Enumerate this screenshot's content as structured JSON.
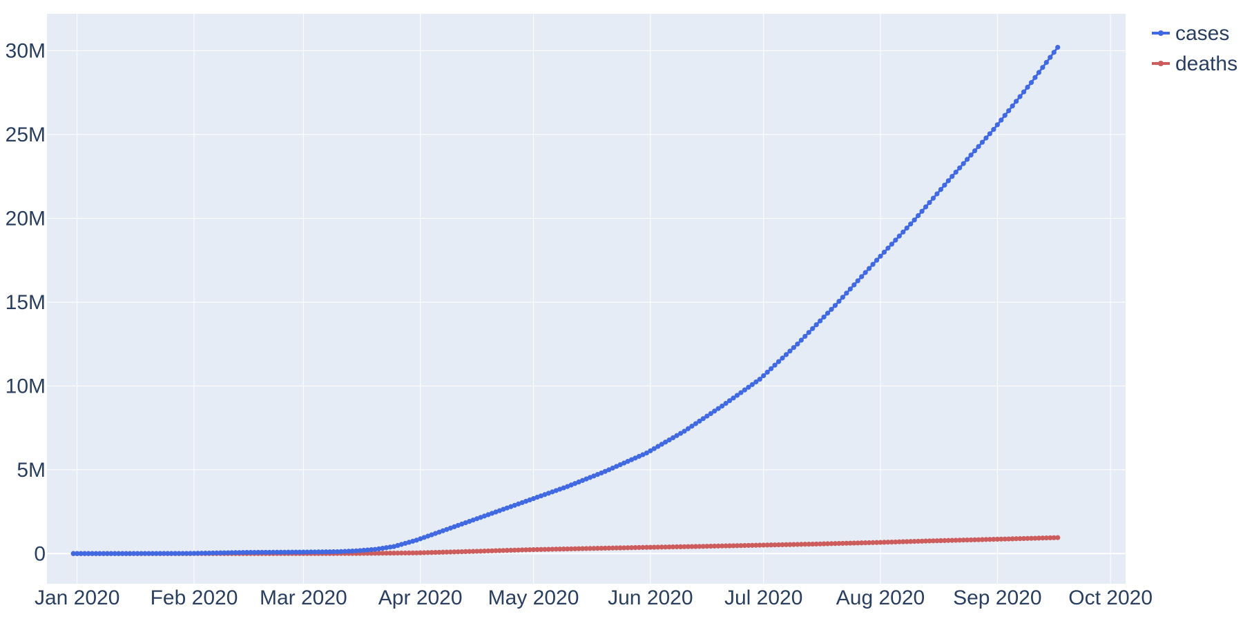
{
  "chart_data": {
    "type": "line",
    "title": "",
    "xlabel": "",
    "ylabel": "",
    "x_axis_type": "date",
    "xlim": [
      "2019-12-24",
      "2020-10-05"
    ],
    "ylim": [
      -1800000,
      32200000
    ],
    "x_ticks": [
      "2020-01-01",
      "2020-02-01",
      "2020-03-01",
      "2020-04-01",
      "2020-05-01",
      "2020-06-01",
      "2020-07-01",
      "2020-08-01",
      "2020-09-01",
      "2020-10-01"
    ],
    "x_tick_labels": [
      "Jan 2020",
      "Feb 2020",
      "Mar 2020",
      "Apr 2020",
      "May 2020",
      "Jun 2020",
      "Jul 2020",
      "Aug 2020",
      "Sep 2020",
      "Oct 2020"
    ],
    "y_ticks": [
      0,
      5000000,
      10000000,
      15000000,
      20000000,
      25000000,
      30000000
    ],
    "y_tick_labels": [
      "0",
      "5M",
      "10M",
      "15M",
      "20M",
      "25M",
      "30M"
    ],
    "grid": true,
    "background": "#e5ecf6",
    "legend_position": "top-right",
    "series": [
      {
        "name": "cases",
        "color": "#4169e1",
        "points": [
          [
            "2019-12-31",
            0
          ],
          [
            "2020-01-15",
            50
          ],
          [
            "2020-01-31",
            9800
          ],
          [
            "2020-02-15",
            69000
          ],
          [
            "2020-02-29",
            86000
          ],
          [
            "2020-03-10",
            110000
          ],
          [
            "2020-03-15",
            160000
          ],
          [
            "2020-03-20",
            250000
          ],
          [
            "2020-03-25",
            420000
          ],
          [
            "2020-03-31",
            800000
          ],
          [
            "2020-04-05",
            1200000
          ],
          [
            "2020-04-10",
            1600000
          ],
          [
            "2020-04-15",
            2000000
          ],
          [
            "2020-04-20",
            2400000
          ],
          [
            "2020-04-25",
            2800000
          ],
          [
            "2020-04-30",
            3200000
          ],
          [
            "2020-05-10",
            4000000
          ],
          [
            "2020-05-20",
            4900000
          ],
          [
            "2020-05-31",
            6000000
          ],
          [
            "2020-06-10",
            7300000
          ],
          [
            "2020-06-20",
            8800000
          ],
          [
            "2020-06-30",
            10400000
          ],
          [
            "2020-07-10",
            12500000
          ],
          [
            "2020-07-20",
            14800000
          ],
          [
            "2020-07-31",
            17500000
          ],
          [
            "2020-08-10",
            19900000
          ],
          [
            "2020-08-20",
            22500000
          ],
          [
            "2020-08-31",
            25300000
          ],
          [
            "2020-09-10",
            28100000
          ],
          [
            "2020-09-17",
            30200000
          ]
        ]
      },
      {
        "name": "deaths",
        "color": "#cd5c5c",
        "points": [
          [
            "2019-12-31",
            0
          ],
          [
            "2020-01-31",
            200
          ],
          [
            "2020-02-29",
            3000
          ],
          [
            "2020-03-15",
            6500
          ],
          [
            "2020-03-31",
            40000
          ],
          [
            "2020-04-15",
            130000
          ],
          [
            "2020-04-30",
            230000
          ],
          [
            "2020-05-15",
            300000
          ],
          [
            "2020-05-31",
            370000
          ],
          [
            "2020-06-15",
            430000
          ],
          [
            "2020-06-30",
            500000
          ],
          [
            "2020-07-15",
            570000
          ],
          [
            "2020-07-31",
            660000
          ],
          [
            "2020-08-15",
            760000
          ],
          [
            "2020-08-31",
            850000
          ],
          [
            "2020-09-17",
            950000
          ]
        ]
      }
    ]
  }
}
